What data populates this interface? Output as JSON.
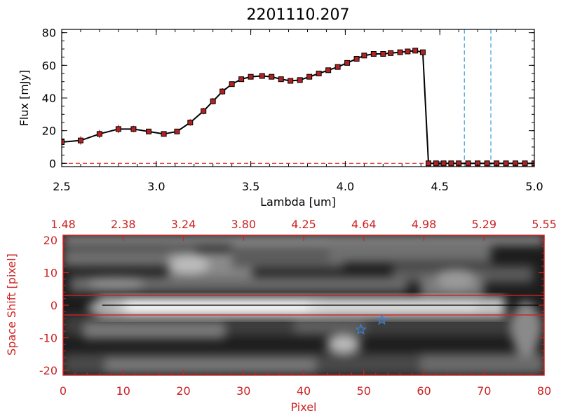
{
  "chart_data": [
    {
      "type": "line",
      "title": "2201110.207",
      "xlabel": "Lambda [um]",
      "ylabel": "Flux [mJy]",
      "xlim": [
        2.5,
        5.0
      ],
      "ylim": [
        -2,
        82
      ],
      "x_ticks": [
        2.5,
        3.0,
        3.5,
        4.0,
        4.5,
        5.0
      ],
      "x_tick_labels": [
        "2.5",
        "3.0",
        "3.5",
        "4.0",
        "4.5",
        "5.0"
      ],
      "y_ticks": [
        0,
        20,
        40,
        60,
        80
      ],
      "y_tick_labels": [
        "0",
        "20",
        "40",
        "60",
        "80"
      ],
      "series": [
        {
          "name": "flux",
          "color": "#000000",
          "marker_color": "#b22222",
          "x": [
            2.5,
            2.6,
            2.7,
            2.8,
            2.88,
            2.96,
            3.04,
            3.11,
            3.18,
            3.25,
            3.3,
            3.35,
            3.4,
            3.45,
            3.5,
            3.56,
            3.61,
            3.66,
            3.71,
            3.76,
            3.81,
            3.86,
            3.91,
            3.96,
            4.01,
            4.06,
            4.1,
            4.15,
            4.2,
            4.24,
            4.29,
            4.33,
            4.37,
            4.41,
            4.44,
            4.48,
            4.52,
            4.56,
            4.6,
            4.65,
            4.7,
            4.75,
            4.8,
            4.85,
            4.9,
            4.95,
            5.0
          ],
          "y": [
            13,
            14,
            18,
            21,
            21,
            19.5,
            18,
            19.5,
            25,
            32,
            38,
            44,
            48.5,
            51.5,
            53,
            53.5,
            53,
            51.5,
            50.5,
            51,
            53,
            55,
            57,
            59,
            61.5,
            64,
            66,
            67,
            67,
            67.5,
            68,
            68.5,
            69,
            68,
            0,
            0,
            0,
            0,
            0,
            0,
            0,
            0,
            0,
            0,
            0,
            0,
            0
          ],
          "error": [
            1.5,
            2.5,
            2.5,
            2.5,
            2,
            1.5,
            1.5,
            1.5,
            2,
            2,
            2,
            2,
            1.5,
            1.5,
            1.5,
            1.5,
            1.5,
            1.5,
            1.5,
            1.5,
            1.5,
            1.5,
            1.5,
            1.5,
            1.5,
            1.5,
            1.5,
            1.5,
            1.5,
            1.5,
            1.5,
            1.5,
            1.5,
            1.5,
            0,
            0,
            0,
            0,
            0,
            0,
            0,
            0,
            0,
            0,
            0,
            0,
            0
          ]
        }
      ],
      "reference_lines": [
        {
          "axis": "x",
          "value": 4.63,
          "color": "#3a9fd8",
          "style": "dashed"
        },
        {
          "axis": "x",
          "value": 4.77,
          "color": "#3a9fd8",
          "style": "dashed"
        },
        {
          "axis": "y",
          "value": 0,
          "color": "#e02020",
          "style": "dashed"
        }
      ]
    },
    {
      "type": "heatmap",
      "xlabel": "Pixel",
      "ylabel": "Space Shift [pixel]",
      "xlim": [
        0,
        80
      ],
      "ylim": [
        -21.5,
        21.5
      ],
      "x_ticks": [
        0,
        10,
        20,
        30,
        40,
        50,
        60,
        70,
        80
      ],
      "x_tick_labels": [
        "0",
        "10",
        "20",
        "30",
        "40",
        "50",
        "60",
        "70",
        "80"
      ],
      "y_ticks": [
        -20,
        -10,
        0,
        10,
        20
      ],
      "y_tick_labels": [
        "-20",
        "-10",
        "0",
        "10",
        "20"
      ],
      "top_x_ticks": [
        0,
        10,
        20,
        30,
        40,
        50,
        60,
        70,
        80
      ],
      "top_tick_labels": [
        "1.48",
        "2.38",
        "3.24",
        "3.80",
        "4.25",
        "4.64",
        "4.98",
        "5.29",
        "5.55"
      ],
      "axis_color": "#cc2222",
      "extraction_lines": [
        3,
        -3
      ],
      "center_line": 0,
      "stars": [
        {
          "x": 49.5,
          "y": -7.5
        },
        {
          "x": 53.0,
          "y": -4.5
        }
      ],
      "star_color": "#3a7fd8"
    }
  ]
}
